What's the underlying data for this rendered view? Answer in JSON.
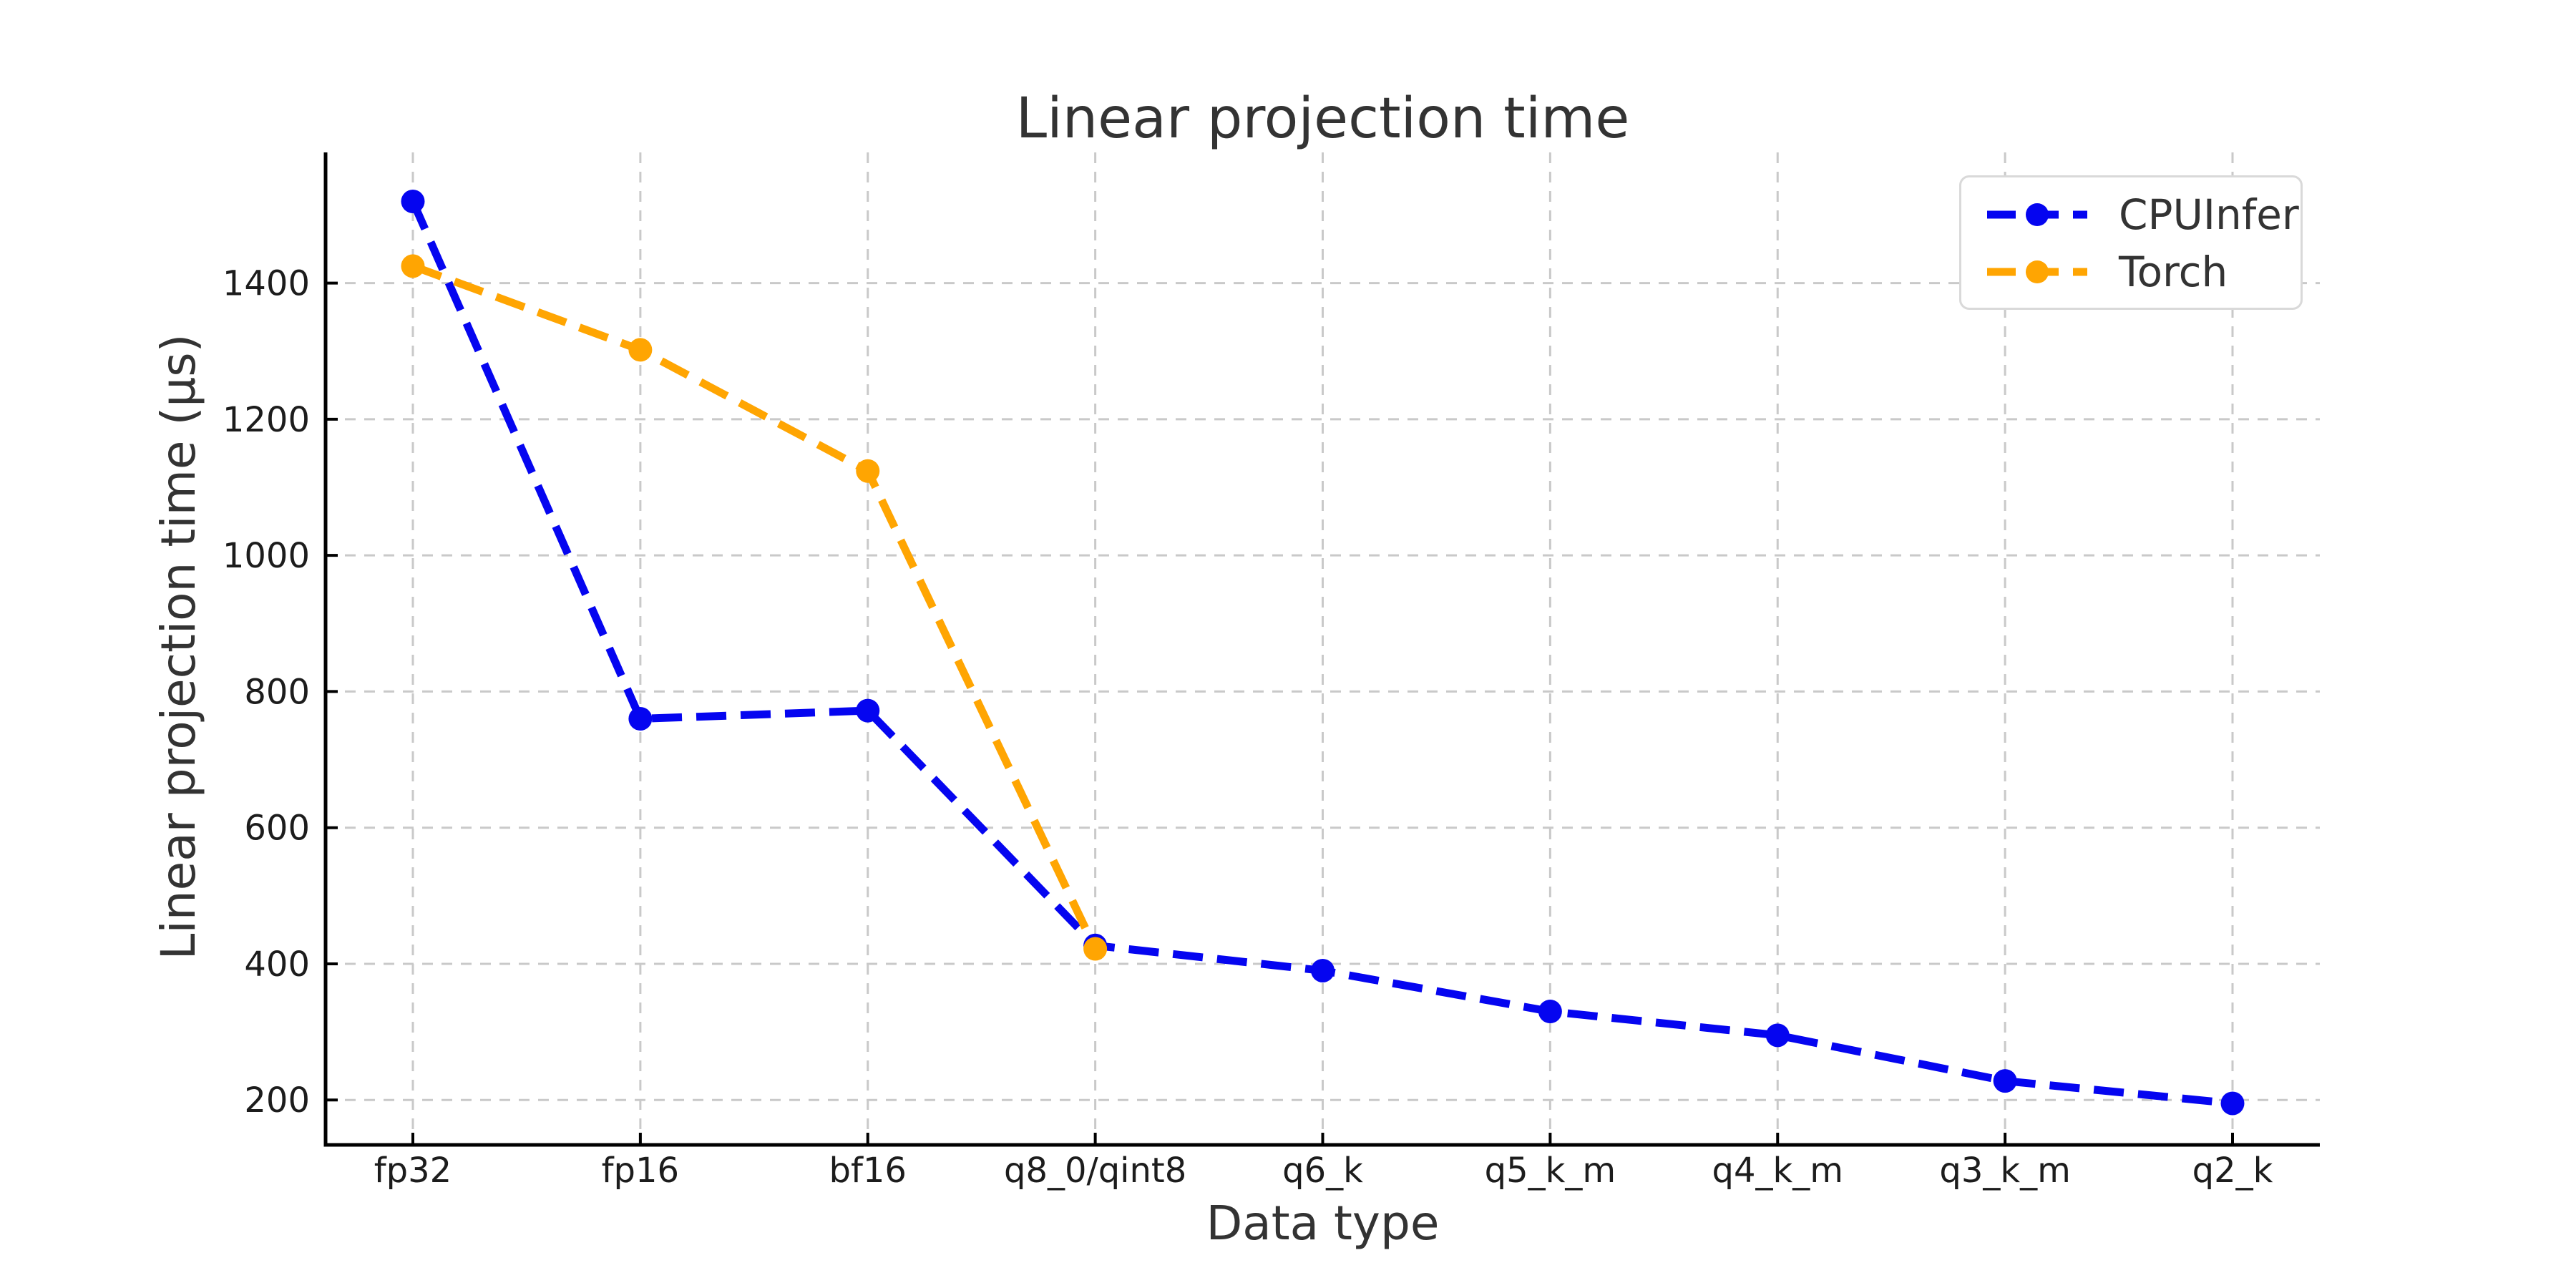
{
  "chart_data": {
    "type": "line",
    "title": "Linear projection time",
    "xlabel": "Data type",
    "ylabel": "Linear projection time (µs)",
    "categories": [
      "fp32",
      "fp16",
      "bf16",
      "q8_0/qint8",
      "q6_k",
      "q5_k_m",
      "q4_k_m",
      "q3_k_m",
      "q2_k"
    ],
    "series": [
      {
        "name": "CPUInfer",
        "color": "#0505f0",
        "values": [
          1520,
          760,
          772,
          427,
          390,
          330,
          295,
          228,
          195
        ]
      },
      {
        "name": "Torch",
        "color": "#ffa502",
        "values": [
          1425,
          1302,
          1124,
          422,
          null,
          null,
          null,
          null,
          null
        ]
      }
    ],
    "yticks": [
      200,
      400,
      600,
      800,
      1000,
      1200,
      1400
    ],
    "ylim": [
      134,
      1592
    ],
    "grid": true,
    "grid_style": "dashed",
    "line_style": "dashed",
    "marker": "circle",
    "legend_position": "upper right"
  },
  "style": {
    "grid_color": "#c9c9c9",
    "spine_color": "#000000",
    "tick_color": "#000000",
    "tick_label_color": "#1c1c1c",
    "text_color": "#333333",
    "background": "#ffffff"
  }
}
